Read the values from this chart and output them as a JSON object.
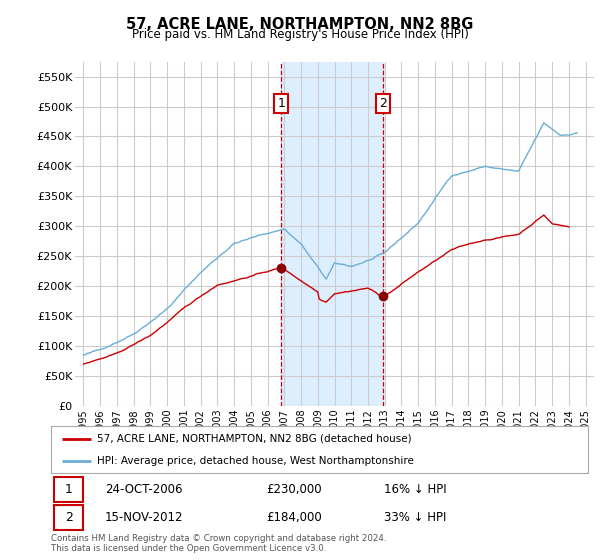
{
  "title": "57, ACRE LANE, NORTHAMPTON, NN2 8BG",
  "subtitle": "Price paid vs. HM Land Registry's House Price Index (HPI)",
  "background_color": "#ffffff",
  "plot_bg_color": "#ffffff",
  "grid_color": "#cccccc",
  "ylim": [
    0,
    575000
  ],
  "yticks": [
    0,
    50000,
    100000,
    150000,
    200000,
    250000,
    300000,
    350000,
    400000,
    450000,
    500000,
    550000
  ],
  "ytick_labels": [
    "£0",
    "£50K",
    "£100K",
    "£150K",
    "£200K",
    "£250K",
    "£300K",
    "£350K",
    "£400K",
    "£450K",
    "£500K",
    "£550K"
  ],
  "xtick_years": [
    1995,
    1996,
    1997,
    1998,
    1999,
    2000,
    2001,
    2002,
    2003,
    2004,
    2005,
    2006,
    2007,
    2008,
    2009,
    2010,
    2011,
    2012,
    2013,
    2014,
    2015,
    2016,
    2017,
    2018,
    2019,
    2020,
    2021,
    2022,
    2023,
    2024,
    2025
  ],
  "hpi_color": "#6baed6",
  "price_color": "#cc0000",
  "marker_color": "#880000",
  "transaction1": {
    "year": 2006.82,
    "price": 230000,
    "label": "1",
    "hpi_pct": 16
  },
  "transaction2": {
    "year": 2012.88,
    "price": 184000,
    "label": "2",
    "hpi_pct": 33
  },
  "shade_color": "#ddeeff",
  "vline_color": "#cc0000",
  "legend_line1": "57, ACRE LANE, NORTHAMPTON, NN2 8BG (detached house)",
  "legend_line2": "HPI: Average price, detached house, West Northamptonshire",
  "footer": "Contains HM Land Registry data © Crown copyright and database right 2024.\nThis data is licensed under the Open Government Licence v3.0.",
  "table_row1": [
    "1",
    "24-OCT-2006",
    "£230,000",
    "16% ↓ HPI"
  ],
  "table_row2": [
    "2",
    "15-NOV-2012",
    "£184,000",
    "33% ↓ HPI"
  ]
}
